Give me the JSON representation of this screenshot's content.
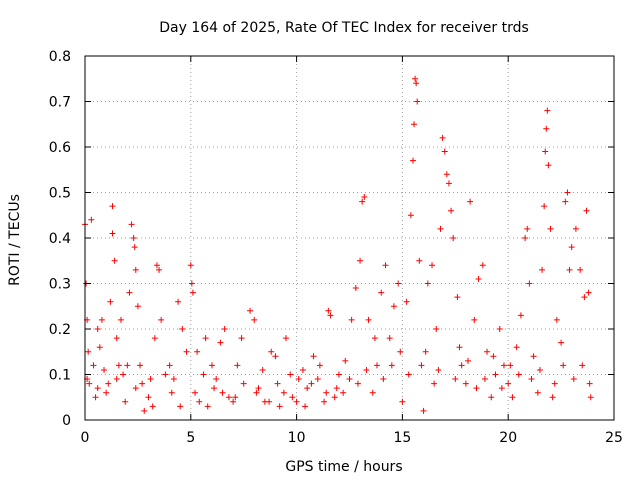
{
  "chart_data": {
    "type": "scatter",
    "title": "Day 164 of 2025, Rate Of TEC Index for receiver trds",
    "xlabel": "GPS time / hours",
    "ylabel": "ROTI / TECUs",
    "xlim": [
      0,
      25
    ],
    "ylim": [
      0,
      0.8
    ],
    "x_ticks": [
      "0",
      "5",
      "10",
      "15",
      "20",
      "25"
    ],
    "y_ticks": [
      "0",
      "0.1",
      "0.2",
      "0.3",
      "0.4",
      "0.5",
      "0.6",
      "0.7",
      "0.8"
    ],
    "grid": true,
    "marker": "+",
    "colors": {
      "points": "#ff0000",
      "grid": "#a0a0a0",
      "axes": "#000000"
    },
    "series": [
      {
        "name": "ROTI",
        "points": [
          [
            0.0,
            0.43
          ],
          [
            0.05,
            0.3
          ],
          [
            0.1,
            0.22
          ],
          [
            0.15,
            0.15
          ],
          [
            0.2,
            0.08
          ],
          [
            0.3,
            0.44
          ],
          [
            0.4,
            0.12
          ],
          [
            0.5,
            0.05
          ],
          [
            0.6,
            0.2
          ],
          [
            0.7,
            0.16
          ],
          [
            0.8,
            0.22
          ],
          [
            0.9,
            0.11
          ],
          [
            1.0,
            0.06
          ],
          [
            1.1,
            0.08
          ],
          [
            1.2,
            0.26
          ],
          [
            1.3,
            0.47
          ],
          [
            1.3,
            0.41
          ],
          [
            1.4,
            0.35
          ],
          [
            1.5,
            0.18
          ],
          [
            1.6,
            0.12
          ],
          [
            1.7,
            0.22
          ],
          [
            1.8,
            0.1
          ],
          [
            1.9,
            0.04
          ],
          [
            2.0,
            0.12
          ],
          [
            2.1,
            0.28
          ],
          [
            2.2,
            0.43
          ],
          [
            2.3,
            0.4
          ],
          [
            2.35,
            0.38
          ],
          [
            2.4,
            0.33
          ],
          [
            2.5,
            0.25
          ],
          [
            2.6,
            0.12
          ],
          [
            2.7,
            0.08
          ],
          [
            2.8,
            0.02
          ],
          [
            3.0,
            0.05
          ],
          [
            3.2,
            0.03
          ],
          [
            3.3,
            0.18
          ],
          [
            3.4,
            0.34
          ],
          [
            3.5,
            0.33
          ],
          [
            3.6,
            0.22
          ],
          [
            3.8,
            0.1
          ],
          [
            4.0,
            0.12
          ],
          [
            4.2,
            0.09
          ],
          [
            4.4,
            0.26
          ],
          [
            4.6,
            0.2
          ],
          [
            4.8,
            0.15
          ],
          [
            5.0,
            0.34
          ],
          [
            5.05,
            0.3
          ],
          [
            5.1,
            0.28
          ],
          [
            5.2,
            0.06
          ],
          [
            5.4,
            0.04
          ],
          [
            5.6,
            0.1
          ],
          [
            5.8,
            0.03
          ],
          [
            6.0,
            0.12
          ],
          [
            6.2,
            0.09
          ],
          [
            6.4,
            0.17
          ],
          [
            6.6,
            0.2
          ],
          [
            6.8,
            0.05
          ],
          [
            7.0,
            0.04
          ],
          [
            7.2,
            0.12
          ],
          [
            7.5,
            0.08
          ],
          [
            7.8,
            0.24
          ],
          [
            8.0,
            0.22
          ],
          [
            8.2,
            0.07
          ],
          [
            8.5,
            0.04
          ],
          [
            8.8,
            0.15
          ],
          [
            9.0,
            0.14
          ],
          [
            9.2,
            0.03
          ],
          [
            9.5,
            0.18
          ],
          [
            9.8,
            0.05
          ],
          [
            10.0,
            0.04
          ],
          [
            10.3,
            0.11
          ],
          [
            10.5,
            0.07
          ],
          [
            10.8,
            0.14
          ],
          [
            11.0,
            0.09
          ],
          [
            11.3,
            0.04
          ],
          [
            11.5,
            0.24
          ],
          [
            11.6,
            0.23
          ],
          [
            11.8,
            0.05
          ],
          [
            12.0,
            0.1
          ],
          [
            12.3,
            0.13
          ],
          [
            12.6,
            0.22
          ],
          [
            12.8,
            0.29
          ],
          [
            13.0,
            0.35
          ],
          [
            13.1,
            0.48
          ],
          [
            13.2,
            0.49
          ],
          [
            13.4,
            0.22
          ],
          [
            13.6,
            0.06
          ],
          [
            13.8,
            0.12
          ],
          [
            14.0,
            0.28
          ],
          [
            14.2,
            0.34
          ],
          [
            14.4,
            0.18
          ],
          [
            14.6,
            0.25
          ],
          [
            14.8,
            0.3
          ],
          [
            15.0,
            0.04
          ],
          [
            15.2,
            0.26
          ],
          [
            15.4,
            0.45
          ],
          [
            15.5,
            0.57
          ],
          [
            15.55,
            0.65
          ],
          [
            15.6,
            0.75
          ],
          [
            15.65,
            0.74
          ],
          [
            15.7,
            0.7
          ],
          [
            15.8,
            0.35
          ],
          [
            16.0,
            0.02
          ],
          [
            16.2,
            0.3
          ],
          [
            16.4,
            0.34
          ],
          [
            16.6,
            0.2
          ],
          [
            16.8,
            0.42
          ],
          [
            16.9,
            0.62
          ],
          [
            17.0,
            0.59
          ],
          [
            17.1,
            0.54
          ],
          [
            17.2,
            0.52
          ],
          [
            17.3,
            0.46
          ],
          [
            17.4,
            0.4
          ],
          [
            17.6,
            0.27
          ],
          [
            17.8,
            0.12
          ],
          [
            18.0,
            0.08
          ],
          [
            18.2,
            0.48
          ],
          [
            18.4,
            0.22
          ],
          [
            18.6,
            0.31
          ],
          [
            18.8,
            0.34
          ],
          [
            19.0,
            0.15
          ],
          [
            19.2,
            0.05
          ],
          [
            19.4,
            0.1
          ],
          [
            19.6,
            0.2
          ],
          [
            19.8,
            0.12
          ],
          [
            20.0,
            0.08
          ],
          [
            20.2,
            0.05
          ],
          [
            20.4,
            0.16
          ],
          [
            20.6,
            0.23
          ],
          [
            20.8,
            0.4
          ],
          [
            20.9,
            0.42
          ],
          [
            21.0,
            0.3
          ],
          [
            21.2,
            0.14
          ],
          [
            21.4,
            0.06
          ],
          [
            21.6,
            0.33
          ],
          [
            21.7,
            0.47
          ],
          [
            21.75,
            0.59
          ],
          [
            21.8,
            0.64
          ],
          [
            21.85,
            0.68
          ],
          [
            21.9,
            0.56
          ],
          [
            22.0,
            0.42
          ],
          [
            22.1,
            0.05
          ],
          [
            22.3,
            0.22
          ],
          [
            22.5,
            0.17
          ],
          [
            22.7,
            0.48
          ],
          [
            22.8,
            0.5
          ],
          [
            22.9,
            0.33
          ],
          [
            23.0,
            0.38
          ],
          [
            23.2,
            0.42
          ],
          [
            23.4,
            0.33
          ],
          [
            23.6,
            0.27
          ],
          [
            23.7,
            0.46
          ],
          [
            23.8,
            0.28
          ],
          [
            23.9,
            0.05
          ],
          [
            0.1,
            0.09
          ],
          [
            0.6,
            0.07
          ],
          [
            1.5,
            0.09
          ],
          [
            2.4,
            0.07
          ],
          [
            3.1,
            0.09
          ],
          [
            4.1,
            0.06
          ],
          [
            4.5,
            0.03
          ],
          [
            5.3,
            0.15
          ],
          [
            5.7,
            0.18
          ],
          [
            6.1,
            0.07
          ],
          [
            6.5,
            0.06
          ],
          [
            7.1,
            0.05
          ],
          [
            7.4,
            0.18
          ],
          [
            8.1,
            0.06
          ],
          [
            8.4,
            0.11
          ],
          [
            8.7,
            0.04
          ],
          [
            9.1,
            0.08
          ],
          [
            9.4,
            0.06
          ],
          [
            9.7,
            0.1
          ],
          [
            10.1,
            0.09
          ],
          [
            10.4,
            0.03
          ],
          [
            10.7,
            0.08
          ],
          [
            11.1,
            0.12
          ],
          [
            11.4,
            0.06
          ],
          [
            11.9,
            0.07
          ],
          [
            12.2,
            0.06
          ],
          [
            12.5,
            0.09
          ],
          [
            12.9,
            0.08
          ],
          [
            13.3,
            0.11
          ],
          [
            13.7,
            0.18
          ],
          [
            14.1,
            0.09
          ],
          [
            14.5,
            0.12
          ],
          [
            14.9,
            0.15
          ],
          [
            15.3,
            0.1
          ],
          [
            15.9,
            0.12
          ],
          [
            16.1,
            0.15
          ],
          [
            16.5,
            0.08
          ],
          [
            16.7,
            0.11
          ],
          [
            17.5,
            0.09
          ],
          [
            17.7,
            0.16
          ],
          [
            18.1,
            0.13
          ],
          [
            18.5,
            0.07
          ],
          [
            18.9,
            0.09
          ],
          [
            19.3,
            0.14
          ],
          [
            19.7,
            0.07
          ],
          [
            20.1,
            0.12
          ],
          [
            20.5,
            0.1
          ],
          [
            21.1,
            0.09
          ],
          [
            21.5,
            0.11
          ],
          [
            22.2,
            0.08
          ],
          [
            22.6,
            0.12
          ],
          [
            23.1,
            0.09
          ],
          [
            23.5,
            0.12
          ],
          [
            23.85,
            0.08
          ]
        ]
      }
    ]
  }
}
